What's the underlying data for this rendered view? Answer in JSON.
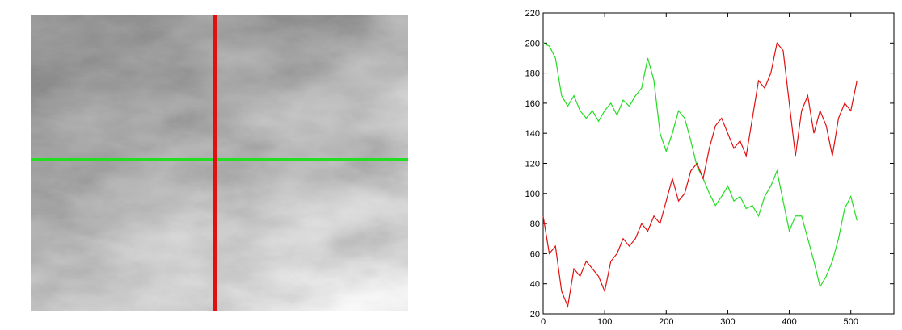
{
  "chart_data": {
    "type": "line",
    "x": [
      0,
      10,
      20,
      30,
      40,
      50,
      60,
      70,
      80,
      90,
      100,
      110,
      120,
      130,
      140,
      150,
      160,
      170,
      180,
      190,
      200,
      210,
      220,
      230,
      240,
      250,
      260,
      270,
      280,
      290,
      300,
      310,
      320,
      330,
      340,
      350,
      360,
      370,
      380,
      390,
      400,
      410,
      420,
      430,
      440,
      450,
      460,
      470,
      480,
      490,
      500,
      510
    ],
    "series": [
      {
        "color": "#22dd22",
        "values": [
          200,
          198,
          190,
          165,
          158,
          165,
          155,
          150,
          155,
          148,
          155,
          160,
          152,
          162,
          158,
          165,
          170,
          190,
          175,
          140,
          128,
          140,
          155,
          150,
          135,
          118,
          110,
          100,
          92,
          98,
          105,
          95,
          98,
          90,
          92,
          85,
          98,
          105,
          115,
          95,
          75,
          85,
          85,
          70,
          55,
          38,
          45,
          55,
          70,
          90,
          98,
          82
        ]
      },
      {
        "color": "#e01010",
        "values": [
          85,
          60,
          65,
          35,
          25,
          50,
          45,
          55,
          50,
          45,
          35,
          55,
          60,
          70,
          65,
          70,
          80,
          75,
          85,
          80,
          95,
          110,
          95,
          100,
          115,
          120,
          110,
          130,
          145,
          150,
          140,
          130,
          135,
          125,
          150,
          175,
          170,
          180,
          200,
          195,
          160,
          125,
          155,
          165,
          140,
          155,
          145,
          125,
          150,
          160,
          155,
          175
        ]
      }
    ],
    "xlim": [
      0,
      570
    ],
    "ylim": [
      20,
      220
    ],
    "xticks": [
      0,
      100,
      200,
      300,
      400,
      500
    ],
    "yticks": [
      20,
      40,
      60,
      80,
      100,
      120,
      140,
      160,
      180,
      200,
      220
    ]
  }
}
